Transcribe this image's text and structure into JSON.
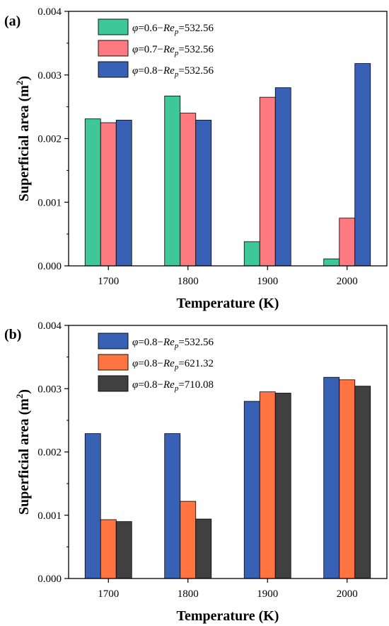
{
  "chart_data": [
    {
      "type": "bar",
      "panel_label": "(a)",
      "categories": [
        "1700",
        "1800",
        "1900",
        "2000"
      ],
      "series": [
        {
          "name_parts": [
            "φ",
            "=0.6−",
            "Re",
            "p",
            "=532.56"
          ],
          "color": "#3EC89A",
          "values": [
            0.00231,
            0.00267,
            0.00038,
            0.00011
          ]
        },
        {
          "name_parts": [
            "φ",
            "=0.7−",
            "Re",
            "p",
            "=532.56"
          ],
          "color": "#FC7A80",
          "values": [
            0.00225,
            0.0024,
            0.00265,
            0.00075
          ]
        },
        {
          "name_parts": [
            "φ",
            "=0.8−",
            "Re",
            "p",
            "=532.56"
          ],
          "color": "#3860B4",
          "values": [
            0.00229,
            0.00229,
            0.0028,
            0.00318
          ]
        }
      ],
      "xlabel": "Temperature (K)",
      "ylabel_main": "Superficial area (m",
      "ylabel_sup": "2",
      "ylabel_close": ")",
      "ylim": [
        0,
        0.004
      ],
      "yticks": [
        "0.000",
        "0.001",
        "0.002",
        "0.003",
        "0.004"
      ],
      "legend_position": "top-left"
    },
    {
      "type": "bar",
      "panel_label": "(b)",
      "categories": [
        "1700",
        "1800",
        "1900",
        "2000"
      ],
      "series": [
        {
          "name_parts": [
            "φ",
            "=0.8−",
            "Re",
            "p",
            "=532.56"
          ],
          "color": "#3860B4",
          "values": [
            0.00229,
            0.00229,
            0.0028,
            0.00318
          ]
        },
        {
          "name_parts": [
            "φ",
            "=0.8−",
            "Re",
            "p",
            "=621.32"
          ],
          "color": "#FF7440",
          "values": [
            0.00093,
            0.00122,
            0.00295,
            0.00314
          ]
        },
        {
          "name_parts": [
            "φ",
            "=0.8−",
            "Re",
            "p",
            "=710.08"
          ],
          "color": "#404040",
          "values": [
            0.0009,
            0.00094,
            0.00293,
            0.00304
          ]
        }
      ],
      "xlabel": "Temperature (K)",
      "ylabel_main": "Superficial area (m",
      "ylabel_sup": "2",
      "ylabel_close": ")",
      "ylim": [
        0,
        0.004
      ],
      "yticks": [
        "0.000",
        "0.001",
        "0.002",
        "0.003",
        "0.004"
      ],
      "legend_position": "top-left"
    }
  ]
}
